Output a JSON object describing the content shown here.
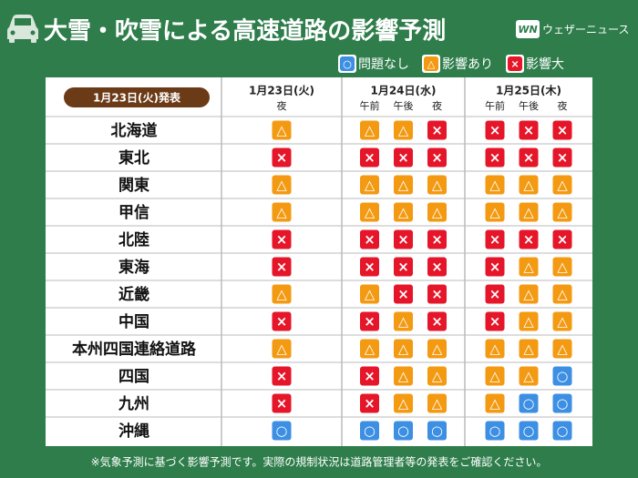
{
  "header": {
    "title": "大雪・吹雪による高速道路の影響予測",
    "logo_mark": "WN",
    "logo": "ウェザーニュース"
  },
  "legend": [
    {
      "symbol": "○",
      "label": "問題なし",
      "color": "#3d8fe3"
    },
    {
      "symbol": "△",
      "label": "影響あり",
      "color": "#f39a12"
    },
    {
      "symbol": "×",
      "label": "影響大",
      "color": "#e5162a"
    }
  ],
  "table": {
    "issued": "1月23日(火)発表",
    "days": [
      {
        "date": "1月23日(火)",
        "periods": [
          "夜"
        ]
      },
      {
        "date": "1月24日(水)",
        "periods": [
          "午前",
          "午後",
          "夜"
        ]
      },
      {
        "date": "1月25日(木)",
        "periods": [
          "午前",
          "午後",
          "夜"
        ]
      }
    ],
    "rows": [
      {
        "region": "北海道",
        "cells": [
          "△",
          "△",
          "△",
          "×",
          "×",
          "×",
          "×"
        ]
      },
      {
        "region": "東北",
        "cells": [
          "×",
          "×",
          "×",
          "×",
          "×",
          "×",
          "×"
        ]
      },
      {
        "region": "関東",
        "cells": [
          "△",
          "△",
          "△",
          "△",
          "△",
          "△",
          "△"
        ]
      },
      {
        "region": "甲信",
        "cells": [
          "△",
          "△",
          "△",
          "△",
          "△",
          "△",
          "△"
        ]
      },
      {
        "region": "北陸",
        "cells": [
          "×",
          "×",
          "×",
          "×",
          "×",
          "×",
          "×"
        ]
      },
      {
        "region": "東海",
        "cells": [
          "×",
          "×",
          "×",
          "×",
          "×",
          "△",
          "△"
        ]
      },
      {
        "region": "近畿",
        "cells": [
          "△",
          "△",
          "×",
          "×",
          "×",
          "△",
          "△"
        ]
      },
      {
        "region": "中国",
        "cells": [
          "×",
          "×",
          "△",
          "×",
          "×",
          "△",
          "△"
        ]
      },
      {
        "region": "本州四国連絡道路",
        "cells": [
          "△",
          "△",
          "△",
          "△",
          "△",
          "△",
          "△"
        ]
      },
      {
        "region": "四国",
        "cells": [
          "×",
          "×",
          "△",
          "△",
          "△",
          "△",
          "○"
        ]
      },
      {
        "region": "九州",
        "cells": [
          "×",
          "×",
          "△",
          "△",
          "△",
          "○",
          "○"
        ]
      },
      {
        "region": "沖縄",
        "cells": [
          "○",
          "○",
          "○",
          "○",
          "○",
          "○",
          "○"
        ]
      }
    ]
  },
  "footer": {
    "note": "※気象予測に基づく影響予測です。実際の規制状況は道路管理者等の発表をご確認ください。"
  }
}
